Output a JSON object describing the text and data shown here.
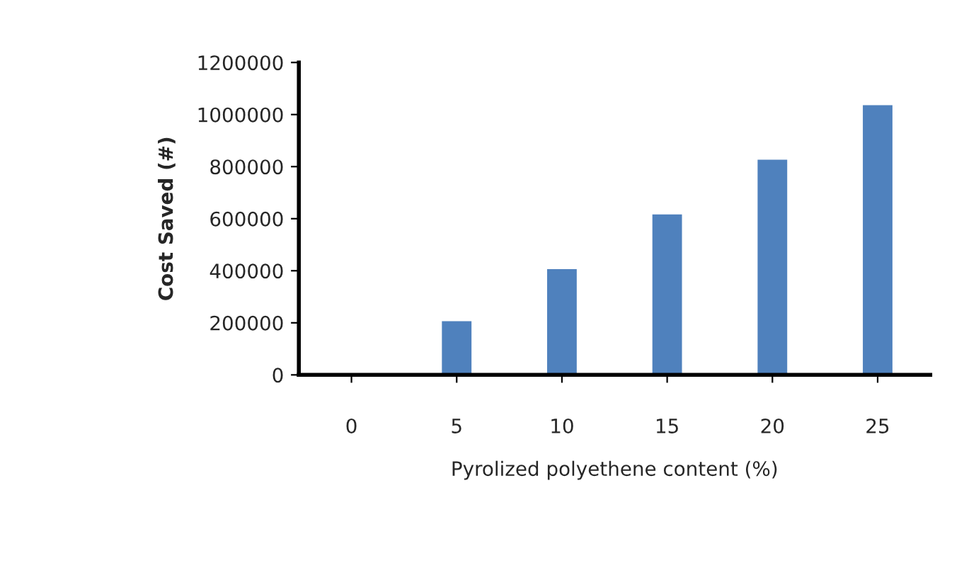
{
  "chart_data": {
    "type": "bar",
    "xlabel": "Pyrolized polyethene content (%)",
    "ylabel": "Cost Saved (#)",
    "categories": [
      "0",
      "5",
      "10",
      "15",
      "20",
      "25"
    ],
    "values": [
      null,
      210000,
      410000,
      620000,
      830000,
      1040000
    ],
    "color": "#4f81bd",
    "ylim": [
      0,
      1200000
    ],
    "yticks": [
      0,
      200000,
      400000,
      600000,
      800000,
      1000000,
      1200000
    ],
    "grid": false,
    "legend": false
  }
}
